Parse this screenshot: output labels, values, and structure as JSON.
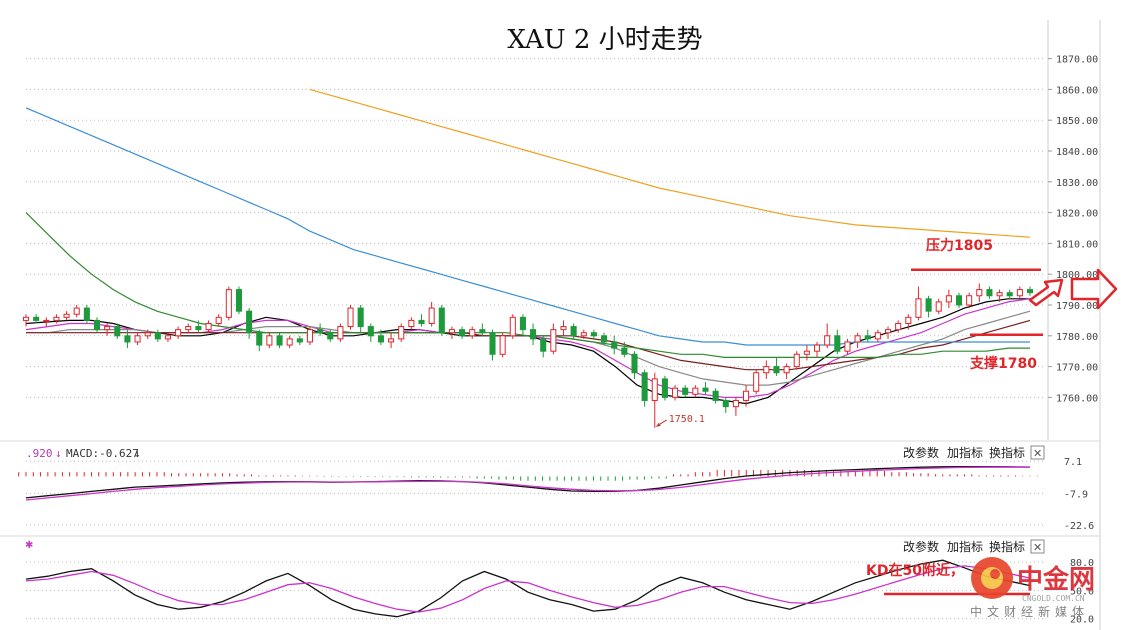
{
  "chart_data": [
    {
      "type": "candlestick",
      "title": "XAU 2 小时走势",
      "ylim": [
        1750,
        1875
      ],
      "yticks": [
        "1870.00",
        "1860.00",
        "1850.00",
        "1840.00",
        "1830.00",
        "1820.00",
        "1810.00",
        "1800.00",
        "1790.00",
        "1780.00",
        "1770.00",
        "1760.00"
      ],
      "ytick_values": [
        1870,
        1860,
        1850,
        1840,
        1830,
        1820,
        1810,
        1800,
        1790,
        1780,
        1770,
        1760
      ],
      "grid": true,
      "candles": [
        [
          1785,
          1787,
          1783,
          1786
        ],
        [
          1786,
          1787,
          1784,
          1785
        ],
        [
          1785,
          1786,
          1783,
          1785
        ],
        [
          1785,
          1787,
          1784,
          1786
        ],
        [
          1786,
          1788,
          1785,
          1787
        ],
        [
          1787,
          1790,
          1786,
          1789
        ],
        [
          1789,
          1790,
          1784,
          1785
        ],
        [
          1785,
          1786,
          1781,
          1782
        ],
        [
          1782,
          1784,
          1780,
          1783
        ],
        [
          1783,
          1784,
          1779,
          1780
        ],
        [
          1780,
          1782,
          1776,
          1778
        ],
        [
          1778,
          1781,
          1777,
          1780
        ],
        [
          1780,
          1782,
          1779,
          1781
        ],
        [
          1781,
          1782,
          1778,
          1779
        ],
        [
          1779,
          1781,
          1778,
          1780
        ],
        [
          1780,
          1783,
          1779,
          1782
        ],
        [
          1782,
          1784,
          1781,
          1783
        ],
        [
          1783,
          1785,
          1781,
          1782
        ],
        [
          1782,
          1785,
          1781,
          1784
        ],
        [
          1784,
          1787,
          1783,
          1786
        ],
        [
          1786,
          1796,
          1785,
          1795
        ],
        [
          1795,
          1796,
          1787,
          1788
        ],
        [
          1788,
          1789,
          1779,
          1781
        ],
        [
          1781,
          1782,
          1775,
          1777
        ],
        [
          1777,
          1781,
          1776,
          1780
        ],
        [
          1780,
          1781,
          1776,
          1777
        ],
        [
          1777,
          1780,
          1776,
          1779
        ],
        [
          1779,
          1780,
          1777,
          1778
        ],
        [
          1778,
          1783,
          1777,
          1782
        ],
        [
          1782,
          1784,
          1780,
          1781
        ],
        [
          1781,
          1782,
          1778,
          1779
        ],
        [
          1779,
          1784,
          1778,
          1783
        ],
        [
          1783,
          1790,
          1782,
          1789
        ],
        [
          1789,
          1790,
          1781,
          1783
        ],
        [
          1783,
          1784,
          1778,
          1780
        ],
        [
          1780,
          1782,
          1777,
          1778
        ],
        [
          1778,
          1781,
          1776,
          1779
        ],
        [
          1779,
          1784,
          1778,
          1783
        ],
        [
          1783,
          1786,
          1782,
          1785
        ],
        [
          1785,
          1787,
          1783,
          1784
        ],
        [
          1784,
          1791,
          1783,
          1789
        ],
        [
          1789,
          1790,
          1780,
          1781
        ],
        [
          1781,
          1783,
          1779,
          1782
        ],
        [
          1782,
          1783,
          1779,
          1780
        ],
        [
          1780,
          1783,
          1779,
          1782
        ],
        [
          1782,
          1784,
          1780,
          1781
        ],
        [
          1781,
          1782,
          1772,
          1774
        ],
        [
          1774,
          1781,
          1773,
          1780
        ],
        [
          1780,
          1787,
          1779,
          1786
        ],
        [
          1786,
          1787,
          1780,
          1782
        ],
        [
          1782,
          1784,
          1777,
          1779
        ],
        [
          1779,
          1780,
          1773,
          1775
        ],
        [
          1775,
          1784,
          1774,
          1782
        ],
        [
          1782,
          1785,
          1780,
          1783
        ],
        [
          1783,
          1784,
          1779,
          1780
        ],
        [
          1780,
          1782,
          1779,
          1781
        ],
        [
          1781,
          1782,
          1779,
          1780
        ],
        [
          1780,
          1781,
          1777,
          1778
        ],
        [
          1778,
          1780,
          1774,
          1776
        ],
        [
          1776,
          1778,
          1773,
          1774
        ],
        [
          1774,
          1775,
          1766,
          1768
        ],
        [
          1768,
          1769,
          1757,
          1759
        ],
        [
          1759,
          1768,
          1750.1,
          1766
        ],
        [
          1766,
          1767,
          1759,
          1760
        ],
        [
          1760,
          1764,
          1759,
          1763
        ],
        [
          1763,
          1764,
          1760,
          1761
        ],
        [
          1761,
          1764,
          1760,
          1763
        ],
        [
          1763,
          1765,
          1761,
          1762
        ],
        [
          1762,
          1763,
          1758,
          1759
        ],
        [
          1759,
          1760,
          1755,
          1757
        ],
        [
          1757,
          1760,
          1754,
          1759
        ],
        [
          1759,
          1764,
          1757,
          1762
        ],
        [
          1762,
          1769,
          1761,
          1768
        ],
        [
          1768,
          1772,
          1766,
          1770
        ],
        [
          1770,
          1773,
          1767,
          1768
        ],
        [
          1768,
          1771,
          1766,
          1770
        ],
        [
          1770,
          1775,
          1769,
          1774
        ],
        [
          1774,
          1777,
          1772,
          1775
        ],
        [
          1775,
          1778,
          1773,
          1777
        ],
        [
          1777,
          1784,
          1776,
          1780
        ],
        [
          1780,
          1782,
          1774,
          1775
        ],
        [
          1775,
          1779,
          1774,
          1778
        ],
        [
          1778,
          1781,
          1776,
          1780
        ],
        [
          1780,
          1782,
          1778,
          1779
        ],
        [
          1779,
          1782,
          1778,
          1781
        ],
        [
          1781,
          1783,
          1779,
          1782
        ],
        [
          1782,
          1785,
          1781,
          1784
        ],
        [
          1784,
          1787,
          1782,
          1786
        ],
        [
          1786,
          1796,
          1785,
          1792
        ],
        [
          1792,
          1793,
          1786,
          1788
        ],
        [
          1788,
          1792,
          1787,
          1791
        ],
        [
          1791,
          1795,
          1789,
          1793
        ],
        [
          1793,
          1794,
          1789,
          1790
        ],
        [
          1790,
          1794,
          1789,
          1793
        ],
        [
          1793,
          1797,
          1791,
          1795
        ],
        [
          1795,
          1796,
          1792,
          1793
        ],
        [
          1793,
          1795,
          1791,
          1794
        ],
        [
          1794,
          1795,
          1792,
          1793
        ],
        [
          1793,
          1796,
          1792,
          1795
        ],
        [
          1795,
          1796,
          1793,
          1794
        ]
      ],
      "moving_averages": [
        {
          "color": "#000000",
          "values": [
            1784,
            1784.5,
            1785,
            1785,
            1784,
            1782,
            1781,
            1780,
            1780,
            1781,
            1784,
            1786,
            1785,
            1782,
            1780,
            1780,
            1781,
            1782,
            1782,
            1781,
            1780,
            1780,
            1780,
            1780,
            1778,
            1777,
            1775,
            1770,
            1764,
            1761,
            1760,
            1760,
            1759,
            1758,
            1760,
            1765,
            1770,
            1775,
            1778,
            1780,
            1782,
            1784,
            1786,
            1789,
            1791,
            1792,
            1792
          ]
        },
        {
          "color": "#cc33cc",
          "values": [
            1782,
            1783,
            1784,
            1784,
            1783,
            1782,
            1781,
            1781,
            1781,
            1782,
            1784,
            1785,
            1785,
            1783,
            1781,
            1781,
            1781,
            1781,
            1782,
            1781,
            1781,
            1780,
            1780,
            1780,
            1779,
            1778,
            1776,
            1772,
            1768,
            1764,
            1762,
            1761,
            1760,
            1760,
            1761,
            1764,
            1768,
            1772,
            1775,
            1777,
            1779,
            1781,
            1784,
            1787,
            1789,
            1791,
            1792
          ]
        },
        {
          "color": "#888888",
          "values": [
            1781,
            1781,
            1782,
            1782,
            1782,
            1782,
            1781,
            1781,
            1781,
            1781,
            1782,
            1783,
            1783,
            1783,
            1782,
            1781,
            1781,
            1781,
            1781,
            1781,
            1781,
            1780,
            1780,
            1780,
            1780,
            1779,
            1778,
            1776,
            1773,
            1770,
            1768,
            1766,
            1765,
            1764,
            1764,
            1765,
            1767,
            1769,
            1771,
            1773,
            1775,
            1777,
            1779,
            1782,
            1784,
            1786,
            1788
          ]
        },
        {
          "color": "#7a1f1f",
          "values": [
            1781,
            1781,
            1781,
            1781,
            1781,
            1781,
            1781,
            1781,
            1781,
            1781,
            1781,
            1781,
            1781,
            1781,
            1781,
            1781,
            1781,
            1781,
            1781,
            1781,
            1781,
            1780,
            1780,
            1780,
            1780,
            1780,
            1779,
            1778,
            1776,
            1774,
            1772,
            1771,
            1770,
            1769,
            1769,
            1769,
            1770,
            1771,
            1772,
            1773,
            1774,
            1776,
            1777,
            1779,
            1781,
            1783,
            1785
          ]
        },
        {
          "color": "#2e8b2e",
          "values": [
            1820,
            1813,
            1806,
            1800,
            1795,
            1791,
            1788,
            1786,
            1784,
            1783,
            1782,
            1781,
            1781,
            1781,
            1781,
            1781,
            1781,
            1781,
            1781,
            1781,
            1781,
            1781,
            1781,
            1780,
            1780,
            1779,
            1778,
            1777,
            1776,
            1775,
            1774,
            1774,
            1773,
            1773,
            1773,
            1773,
            1773,
            1773,
            1773,
            1773,
            1774,
            1774,
            1775,
            1775,
            1775,
            1776,
            1776
          ]
        },
        {
          "color": "#3a8fd6",
          "values": [
            1854,
            1851,
            1848,
            1845,
            1842,
            1839,
            1836,
            1833,
            1830,
            1827,
            1824,
            1821,
            1818,
            1814,
            1811,
            1808,
            1806,
            1804,
            1802,
            1800,
            1798,
            1796,
            1794,
            1792,
            1790,
            1788,
            1786,
            1784,
            1782,
            1780,
            1779,
            1778,
            1778,
            1777,
            1777,
            1777,
            1777,
            1777,
            1778,
            1778,
            1778,
            1778,
            1778,
            1778,
            1778,
            1778,
            1778
          ]
        },
        {
          "color": "#f0a020",
          "values": [
            null,
            null,
            null,
            null,
            null,
            null,
            null,
            null,
            null,
            null,
            null,
            null,
            null,
            1860,
            1858,
            1856,
            1854,
            1852,
            1850,
            1848,
            1846,
            1844,
            1842,
            1840,
            1838,
            1836,
            1834,
            1832,
            1830,
            1828,
            1826.5,
            1825,
            1823.5,
            1822,
            1820.5,
            1819,
            1818,
            1817,
            1816,
            1815.5,
            1815,
            1814.5,
            1814,
            1813.5,
            1813,
            1812.5,
            1812
          ]
        }
      ],
      "annotations": [
        {
          "text": "压力1805",
          "type": "resistance",
          "value": 1805
        },
        {
          "text": "支撑1780",
          "type": "support",
          "value": 1780
        },
        {
          "text": "1750.1",
          "type": "low"
        }
      ]
    },
    {
      "type": "macd",
      "label_a": ".920",
      "label_b": "MACD:-0.627",
      "yticks": [
        "7.1",
        "-7.9",
        "-22.6"
      ],
      "ytick_values": [
        7.1,
        -7.9,
        -22.6
      ],
      "ylim": [
        -25,
        10
      ],
      "dif": [
        -10,
        -9,
        -8,
        -7,
        -6,
        -5,
        -4.5,
        -4,
        -3.5,
        -3,
        -2.7,
        -2.5,
        -2.4,
        -2.5,
        -2.7,
        -2.6,
        -2.4,
        -2.2,
        -2,
        -2.1,
        -2.4,
        -3,
        -4,
        -5,
        -6,
        -6.8,
        -7,
        -7,
        -6.5,
        -5.5,
        -4,
        -2.5,
        -1,
        0.2,
        1,
        1.8,
        2.3,
        2.8,
        3.2,
        3.6,
        4,
        4.3,
        4.5,
        4.6,
        4.6,
        4.5,
        4.4
      ],
      "dea": [
        -11,
        -10,
        -9,
        -8,
        -7,
        -6,
        -5.2,
        -4.6,
        -4,
        -3.5,
        -3.1,
        -2.8,
        -2.6,
        -2.6,
        -2.6,
        -2.6,
        -2.5,
        -2.4,
        -2.3,
        -2.3,
        -2.4,
        -2.8,
        -3.5,
        -4.4,
        -5.3,
        -6,
        -6.5,
        -6.7,
        -6.6,
        -6.1,
        -5.1,
        -3.8,
        -2.5,
        -1.3,
        -0.3,
        0.6,
        1.3,
        1.9,
        2.4,
        2.9,
        3.3,
        3.7,
        4,
        4.2,
        4.3,
        4.3,
        4.3
      ],
      "hist": [
        2,
        2,
        2,
        2,
        2,
        2,
        2,
        1.5,
        1.5,
        1.5,
        1,
        0.5,
        0.5,
        0.3,
        -0.3,
        -0.3,
        -0.3,
        -0.3,
        -0.5,
        -0.5,
        -0.5,
        -1,
        -1.5,
        -2,
        -2,
        -2,
        -2,
        -2,
        -1.5,
        -1,
        1,
        2,
        3,
        3,
        3,
        3,
        3,
        3,
        2.5,
        2.5,
        2,
        1.5,
        1,
        1,
        0.5,
        0.5,
        0.3
      ]
    },
    {
      "type": "kd",
      "label_a": "KD在50附近，",
      "yticks": [
        "80.0",
        "50.0",
        "20.0"
      ],
      "ytick_values": [
        80,
        50,
        20
      ],
      "ylim": [
        10,
        95
      ],
      "k": [
        62,
        65,
        70,
        73,
        60,
        45,
        35,
        30,
        32,
        38,
        48,
        60,
        68,
        55,
        40,
        30,
        25,
        22,
        28,
        42,
        60,
        70,
        62,
        48,
        40,
        35,
        28,
        30,
        40,
        55,
        64,
        58,
        48,
        40,
        35,
        30,
        38,
        48,
        58,
        65,
        72,
        78,
        82,
        74,
        65,
        60,
        55
      ],
      "d": [
        60,
        62,
        66,
        70,
        66,
        57,
        47,
        39,
        35,
        35,
        40,
        48,
        56,
        58,
        52,
        43,
        36,
        30,
        27,
        31,
        40,
        52,
        60,
        58,
        50,
        43,
        37,
        32,
        34,
        40,
        48,
        54,
        54,
        48,
        42,
        37,
        36,
        40,
        46,
        53,
        60,
        67,
        73,
        76,
        73,
        68,
        63
      ]
    }
  ],
  "toolbar": {
    "items": [
      "改参数",
      "加指标",
      "换指标"
    ],
    "close": "✕"
  },
  "watermark": {
    "brand": "中金网",
    "sub": "中文财经新媒体",
    "en": "CNGOLD.COM.CN"
  },
  "colors": {
    "bull": "#e0262b",
    "bear": "#1e9a3c",
    "annotation": "#e0262b"
  }
}
